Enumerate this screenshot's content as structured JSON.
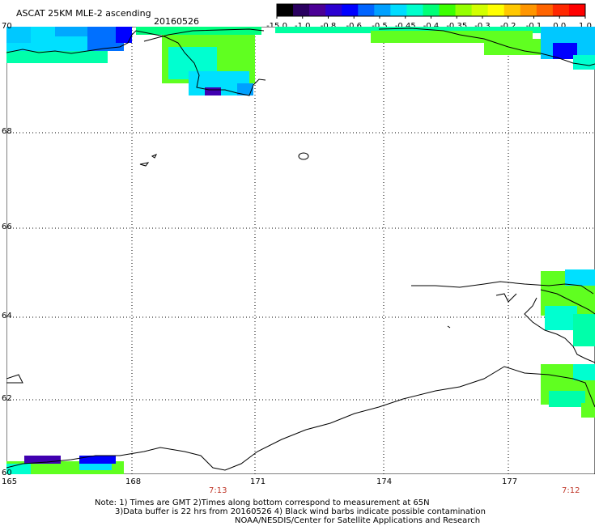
{
  "header": {
    "title": "ASCAT 25KM MLE-2 ascending",
    "date": "20160526"
  },
  "colorbar": {
    "labels": [
      "-15.0",
      "-1.0",
      "-0.8",
      "-0.6",
      "-0.5",
      "-0.45",
      "-0.4",
      "-0.35",
      "-0.3",
      "-0.2",
      "-0.1",
      "0.0",
      "1.0"
    ],
    "colors": [
      "#000000",
      "#2a0060",
      "#4b0096",
      "#2b00d0",
      "#0000ff",
      "#0064ff",
      "#00a0ff",
      "#00dcff",
      "#00ffcc",
      "#00ff78",
      "#3cff00",
      "#96ff00",
      "#d2ff00",
      "#ffff00",
      "#ffc800",
      "#ff9600",
      "#ff6400",
      "#ff2800",
      "#ff0000"
    ]
  },
  "axes": {
    "lat_labels": [
      "70",
      "68",
      "66",
      "64",
      "62",
      "60"
    ],
    "lon_labels": [
      "165",
      "168",
      "171",
      "174",
      "177"
    ]
  },
  "times": {
    "t1": "7:13",
    "t2": "7:12"
  },
  "notes": {
    "line1": "Note: 1) Times are GMT 2)Times along bottom correspond to measurement at 65N",
    "line2": "3)Data buffer is 22 hrs from 20160526 4) Black wind barbs indicate possible contamination",
    "line3": "NOAA/NESDIS/Center for Satellite Applications and Research"
  }
}
